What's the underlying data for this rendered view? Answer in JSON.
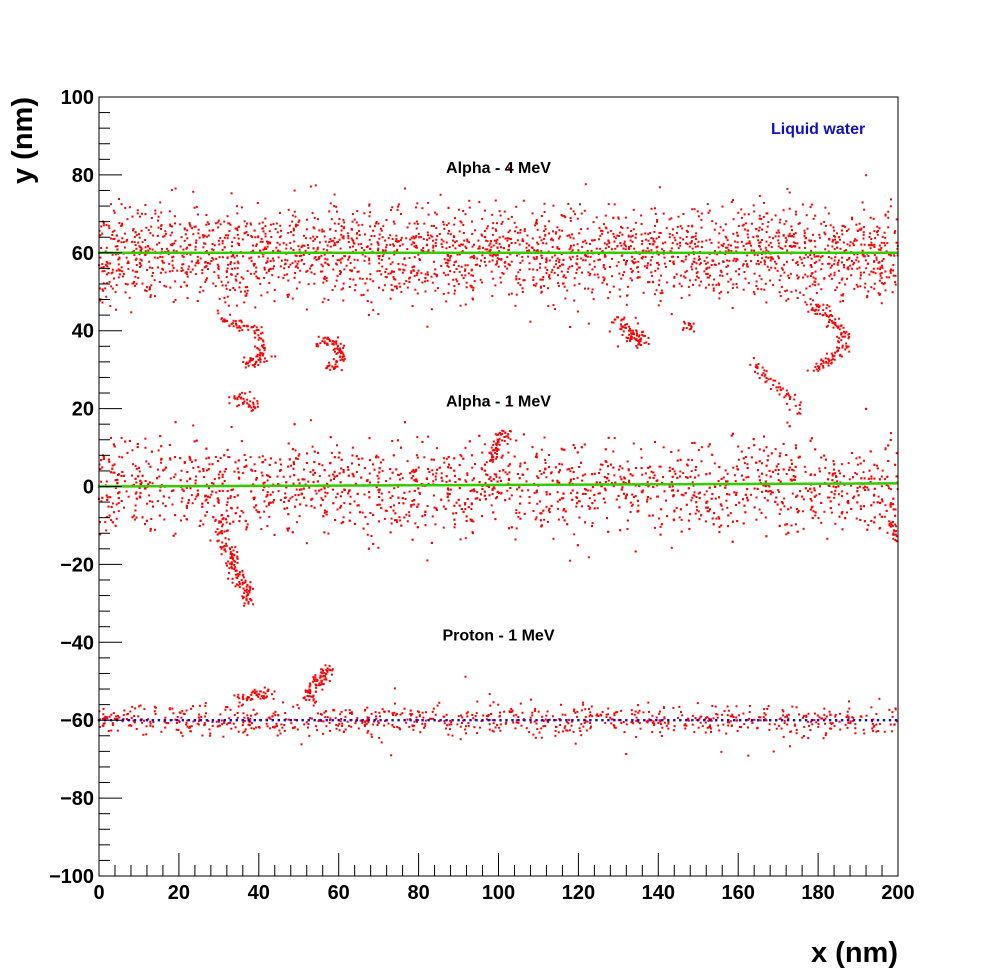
{
  "chart_data": {
    "type": "scatter",
    "xlabel": "x (nm)",
    "ylabel": "y (nm)",
    "xlim": [
      0,
      200
    ],
    "ylim": [
      -100,
      100
    ],
    "x_ticks": [
      0,
      20,
      40,
      60,
      80,
      100,
      120,
      140,
      160,
      180,
      200
    ],
    "x_tick_labels": [
      "0",
      "20",
      "40",
      "60",
      "80",
      "100",
      "120",
      "140",
      "160",
      "180",
      "200"
    ],
    "y_ticks": [
      -100,
      -80,
      -60,
      -40,
      -20,
      0,
      20,
      40,
      60,
      80,
      100
    ],
    "y_tick_labels": [
      "−100",
      "−80",
      "−60",
      "−40",
      "−20",
      "0",
      "20",
      "40",
      "60",
      "80",
      "100"
    ],
    "grid": false,
    "legend": "none",
    "annotations": [
      {
        "text": "Liquid water",
        "x": 180,
        "y": 90,
        "color": "#1010c8"
      },
      {
        "text": "Alpha - 4 MeV",
        "x": 100,
        "y": 80,
        "color": "#000000"
      },
      {
        "text": "Alpha - 1 MeV",
        "x": 100,
        "y": 20,
        "color": "#000000"
      },
      {
        "text": "Proton - 1 MeV",
        "x": 100,
        "y": -40,
        "color": "#000000"
      }
    ],
    "series": [
      {
        "track": "Alpha - 4 MeV",
        "primary_color": "#33cc00",
        "secondary_color": "#ff0000",
        "primary_y": 60,
        "secondary_spread": 6,
        "branches": [
          {
            "x": [
              31,
              33,
              36,
              39,
              41,
              42,
              40,
              38,
              37
            ],
            "y": [
              44,
              41,
              42,
              40,
              37,
              34,
              32,
              33,
              31
            ]
          },
          {
            "x": [
              55,
              57,
              59,
              60,
              61,
              59,
              57
            ],
            "y": [
              36,
              38,
              37,
              35,
              33,
              31,
              30
            ]
          },
          {
            "x": [
              129,
              131,
              133,
              135,
              136,
              134,
              132
            ],
            "y": [
              41,
              42,
              40,
              39,
              37,
              38,
              37
            ]
          },
          {
            "x": [
              147,
              148
            ],
            "y": [
              42,
              41
            ]
          },
          {
            "x": [
              178,
              180,
              182,
              184,
              186,
              187,
              185,
              183,
              181,
              179
            ],
            "y": [
              47,
              46,
              44,
              42,
              40,
              37,
              35,
              33,
              31,
              30
            ]
          },
          {
            "x": [
              34,
              36,
              38,
              40
            ],
            "y": [
              22,
              23,
              21,
              20
            ]
          },
          {
            "x": [
              163,
              166,
              170,
              173,
              175
            ],
            "y": [
              32,
              29,
              26,
              23,
              20
            ]
          }
        ]
      },
      {
        "track": "Alpha - 1 MeV",
        "primary_color": "#33cc00",
        "secondary_color": "#ff0000",
        "primary_y": 0,
        "secondary_spread": 6,
        "branches": [
          {
            "x": [
              31,
              30,
              31,
              33,
              34,
              33,
              35,
              36,
              37,
              38,
              37
            ],
            "y": [
              -8,
              -12,
              -15,
              -17,
              -19,
              -21,
              -23,
              -24,
              -26,
              -28,
              -30
            ]
          },
          {
            "x": [
              98,
              99,
              100,
              101,
              102
            ],
            "y": [
              7,
              9,
              11,
              13,
              14
            ]
          },
          {
            "x": [
              198,
              199,
              200
            ],
            "y": [
              -9,
              -12,
              -14
            ]
          }
        ]
      },
      {
        "track": "Proton - 1 MeV",
        "primary_color": "#1010c8",
        "secondary_color": "#ff0000",
        "primary_y": -60,
        "secondary_spread": 2.5,
        "branches": [
          {
            "x": [
              52,
              53,
              54,
              55,
              56,
              57,
              58
            ],
            "y": [
              -55,
              -53,
              -51,
              -50,
              -49,
              -48,
              -47
            ]
          },
          {
            "x": [
              35,
              37,
              39,
              41,
              43
            ],
            "y": [
              -55,
              -54,
              -53,
              -54,
              -53
            ]
          }
        ]
      }
    ]
  }
}
